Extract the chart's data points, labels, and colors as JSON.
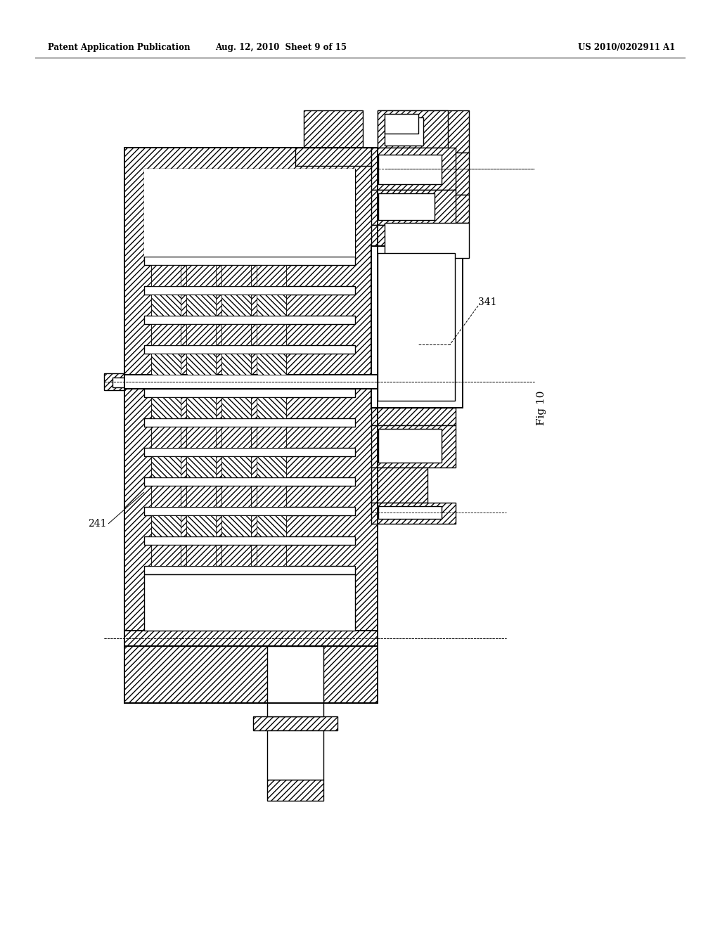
{
  "title_left": "Patent Application Publication",
  "title_center": "Aug. 12, 2010  Sheet 9 of 15",
  "title_right": "US 2010/0202911 A1",
  "fig_label": "Fig 10",
  "label_241": "241",
  "label_341": "341",
  "background_color": "#ffffff",
  "line_color": "#000000",
  "fig_width": 10.24,
  "fig_height": 13.2
}
